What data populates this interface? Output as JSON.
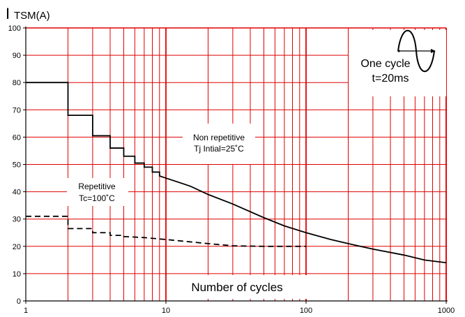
{
  "chart_data": {
    "type": "line",
    "ylabel_main": "I",
    "ylabel_sub": "TSM(A)",
    "xlabel": "Number of cycles",
    "x_scale": "log",
    "xlim": [
      1,
      1000
    ],
    "ylim": [
      0,
      100
    ],
    "grid": true,
    "x_ticks": [
      1,
      10,
      100,
      1000
    ],
    "y_ticks": [
      0,
      10,
      20,
      30,
      40,
      50,
      60,
      70,
      80,
      90,
      100
    ],
    "colors": {
      "grid": "#e00000",
      "curve": "#000000",
      "text": "#000000"
    },
    "annotations": {
      "non_repetitive_line1": "Non repetitive",
      "non_repetitive_line2": "Tj Intial=25˚C",
      "repetitive_line1": "Repetitive",
      "repetitive_line2": "Tc=100˚C",
      "cycle_line1": "One  cycle",
      "cycle_line2": "t=20ms"
    },
    "series": [
      {
        "style": "solid",
        "points": [
          [
            1,
            80
          ],
          [
            2,
            80
          ],
          [
            2,
            68
          ],
          [
            3,
            68
          ],
          [
            3,
            60.5
          ],
          [
            4,
            60.5
          ],
          [
            4,
            56
          ],
          [
            5,
            56
          ],
          [
            5,
            53
          ],
          [
            6,
            53
          ],
          [
            6,
            50.5
          ],
          [
            7,
            50.5
          ],
          [
            7,
            49
          ],
          [
            8,
            49
          ],
          [
            8,
            47.2
          ],
          [
            9,
            47.2
          ],
          [
            9,
            45.8
          ],
          [
            10,
            45
          ],
          [
            15,
            42
          ],
          [
            20,
            39
          ],
          [
            30,
            35.5
          ],
          [
            50,
            30.5
          ],
          [
            70,
            27.5
          ],
          [
            100,
            25
          ],
          [
            150,
            22.5
          ],
          [
            200,
            21
          ],
          [
            300,
            19
          ],
          [
            500,
            16.8
          ],
          [
            700,
            15
          ],
          [
            1000,
            14
          ]
        ]
      },
      {
        "style": "dashed",
        "points": [
          [
            1,
            31
          ],
          [
            2,
            31
          ],
          [
            2,
            26.5
          ],
          [
            3,
            26.5
          ],
          [
            3,
            25
          ],
          [
            4,
            25
          ],
          [
            4,
            24
          ],
          [
            5,
            24
          ],
          [
            5,
            23.6
          ],
          [
            7,
            23.2
          ],
          [
            10,
            22.5
          ],
          [
            20,
            21
          ],
          [
            30,
            20.2
          ],
          [
            50,
            20
          ],
          [
            70,
            20
          ],
          [
            100,
            20
          ]
        ]
      }
    ]
  }
}
